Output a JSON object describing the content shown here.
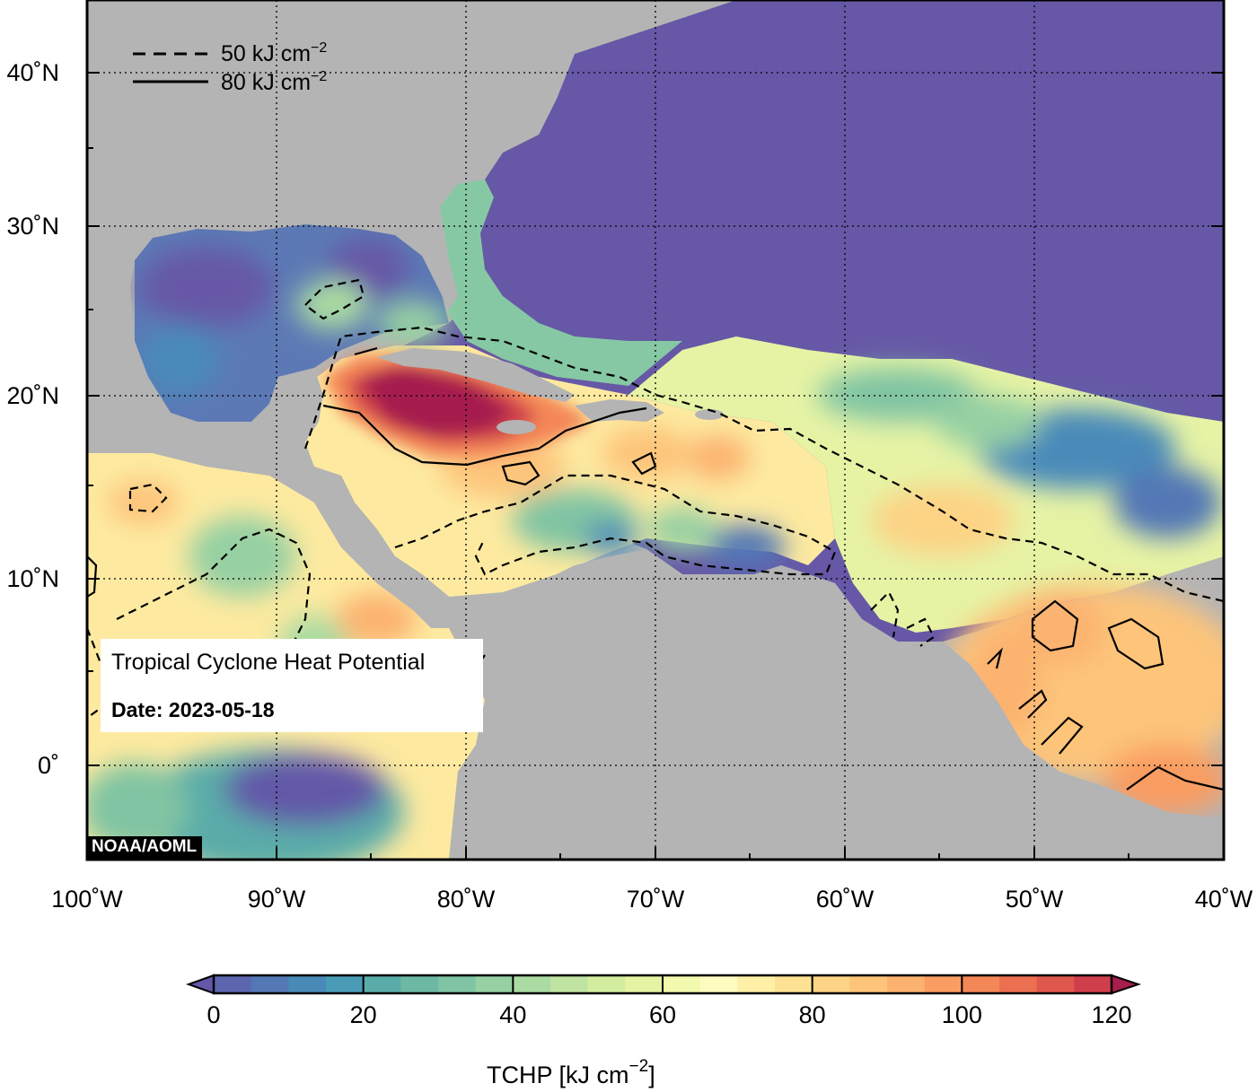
{
  "map": {
    "title": "Tropical Cyclone Heat Potential",
    "date_label": "Date: 2023-05-18",
    "credit": "NOAA/AOML",
    "lon_ticks": [
      "100˚W",
      "90˚W",
      "80˚W",
      "70˚W",
      "60˚W",
      "50˚W",
      "40˚W"
    ],
    "lat_ticks": [
      "40˚N",
      "30˚N",
      "20˚N",
      "10˚N",
      "0˚"
    ],
    "legend": [
      {
        "style": "dashed",
        "label": "50 kJ cm",
        "exp": "−2"
      },
      {
        "style": "solid",
        "label": "80 kJ cm",
        "exp": "−2"
      }
    ],
    "colors": {
      "land": "#b4b4b4",
      "ocean_cold": "#6658a6",
      "ocean_warm": "#fdeaa0",
      "hot": "#a51e4e",
      "frame": "#000000"
    }
  },
  "colorbar": {
    "label": "TCHP [kJ cm",
    "label_exp": "−2",
    "label_close": "]",
    "min": 0,
    "max": 120,
    "step": 5,
    "ticks": [
      "0",
      "20",
      "40",
      "60",
      "80",
      "100",
      "120"
    ],
    "colors": [
      "#6257a8",
      "#5b66ae",
      "#5378b5",
      "#4a8ab9",
      "#4a9cb6",
      "#5aaca9",
      "#6cb8a3",
      "#80c4a3",
      "#96d0a3",
      "#aadba2",
      "#bfe3a0",
      "#d3ed9f",
      "#e4f4a2",
      "#f3f9ad",
      "#fdfbc0",
      "#fef0a6",
      "#fde294",
      "#fdd385",
      "#fdc47a",
      "#fcb26f",
      "#f99d62",
      "#f48757",
      "#ec6f4f",
      "#e0584c",
      "#cf3f4b",
      "#bc2a4b",
      "#a51e4e"
    ]
  }
}
